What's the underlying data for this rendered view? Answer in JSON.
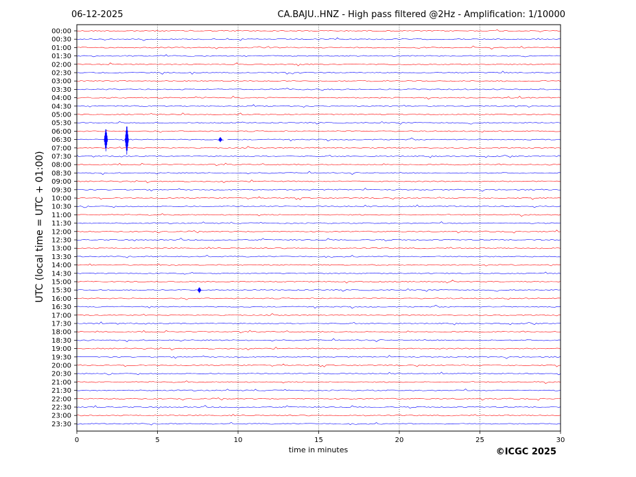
{
  "header": {
    "date": "06-12-2025",
    "title": "CA.BAJU..HNZ - High pass filtered @2Hz - Amplification: 1/10000"
  },
  "footer": {
    "copyright": "©ICGC 2025"
  },
  "chart_data": {
    "type": "line",
    "title": "CA.BAJU..HNZ - High pass filtered @2Hz - Amplification: 1/10000",
    "xlabel": "time in minutes",
    "ylabel": "UTC (local time = UTC + 01:00)",
    "xlim": [
      0,
      30
    ],
    "xticks": [
      "0",
      "5",
      "10",
      "15",
      "20",
      "25",
      "30"
    ],
    "vertical_gridlines_at": [
      5,
      10,
      15,
      20,
      25
    ],
    "rows": [
      "00:00",
      "00:30",
      "01:00",
      "01:30",
      "02:00",
      "02:30",
      "03:00",
      "03:30",
      "04:00",
      "04:30",
      "05:00",
      "05:30",
      "06:00",
      "06:30",
      "07:00",
      "07:30",
      "08:00",
      "08:30",
      "09:00",
      "09:30",
      "10:00",
      "10:30",
      "11:00",
      "11:30",
      "12:00",
      "12:30",
      "13:00",
      "13:30",
      "14:00",
      "14:30",
      "15:00",
      "15:30",
      "16:00",
      "16:30",
      "17:00",
      "17:30",
      "18:00",
      "18:30",
      "19:00",
      "19:30",
      "20:00",
      "20:30",
      "21:00",
      "21:30",
      "22:00",
      "22:30",
      "23:00",
      "23:30"
    ],
    "trace_colors": [
      "#ff0000",
      "#0000ff"
    ],
    "notable_events": [
      {
        "row": "06:30",
        "minute": 1.8,
        "relative_amplitude": 1.4
      },
      {
        "row": "06:30",
        "minute": 3.1,
        "relative_amplitude": 1.8
      },
      {
        "row": "06:30",
        "minute": 8.9,
        "relative_amplitude": 0.3
      },
      {
        "row": "15:30",
        "minute": 7.6,
        "relative_amplitude": 0.35
      }
    ],
    "gaps": [
      {
        "row": "06:30",
        "start_minute": 9.2,
        "end_minute": 9.3
      }
    ]
  }
}
